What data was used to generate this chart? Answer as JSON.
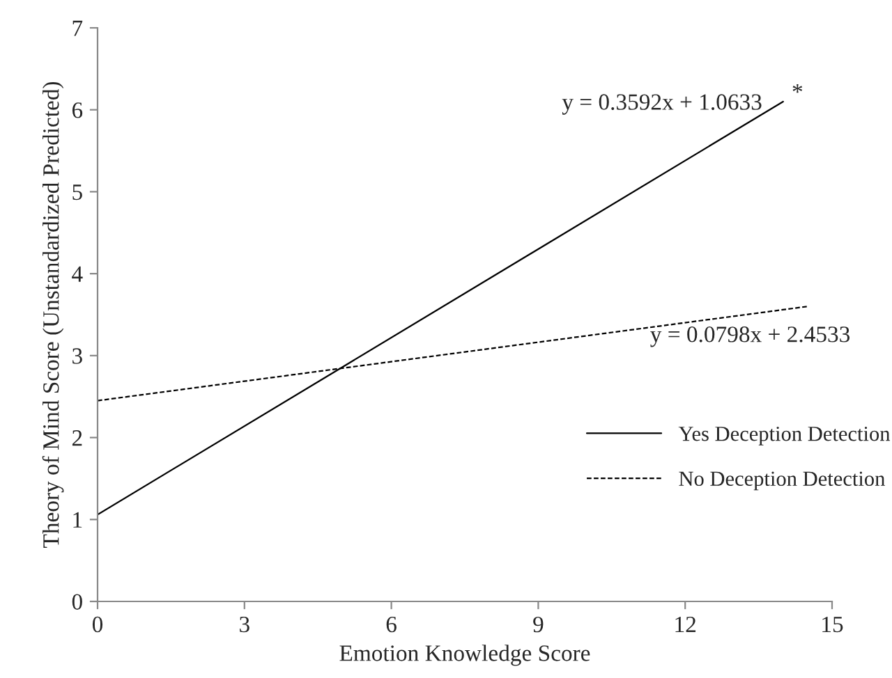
{
  "chart_data": {
    "type": "line",
    "xlabel": "Emotion Knowledge Score",
    "ylabel": "Theory of Mind Score (Unstandardized Predicted)",
    "series": [
      {
        "name": "Yes Deception Detection",
        "color": "#000000",
        "x": [
          0,
          14
        ],
        "values": [
          1.06,
          6.1
        ],
        "line_style": "solid"
      },
      {
        "name": "No Deception Detection",
        "color": "#000000",
        "x": [
          0,
          14.5
        ],
        "values": [
          2.45,
          3.6
        ],
        "line_style": "dashed"
      }
    ],
    "annotations": [
      "y = 0.3592x + 1.0633",
      "*",
      "y = 0.0798x + 2.4533"
    ],
    "xlim": [
      0,
      15
    ],
    "xticks": [
      0,
      3,
      6,
      9,
      12,
      15
    ],
    "ylim": [
      0,
      7
    ],
    "yticks": [
      0,
      1,
      2,
      3,
      4,
      5,
      6,
      7
    ],
    "grid": false,
    "legend": "center right",
    "marker": "none"
  }
}
